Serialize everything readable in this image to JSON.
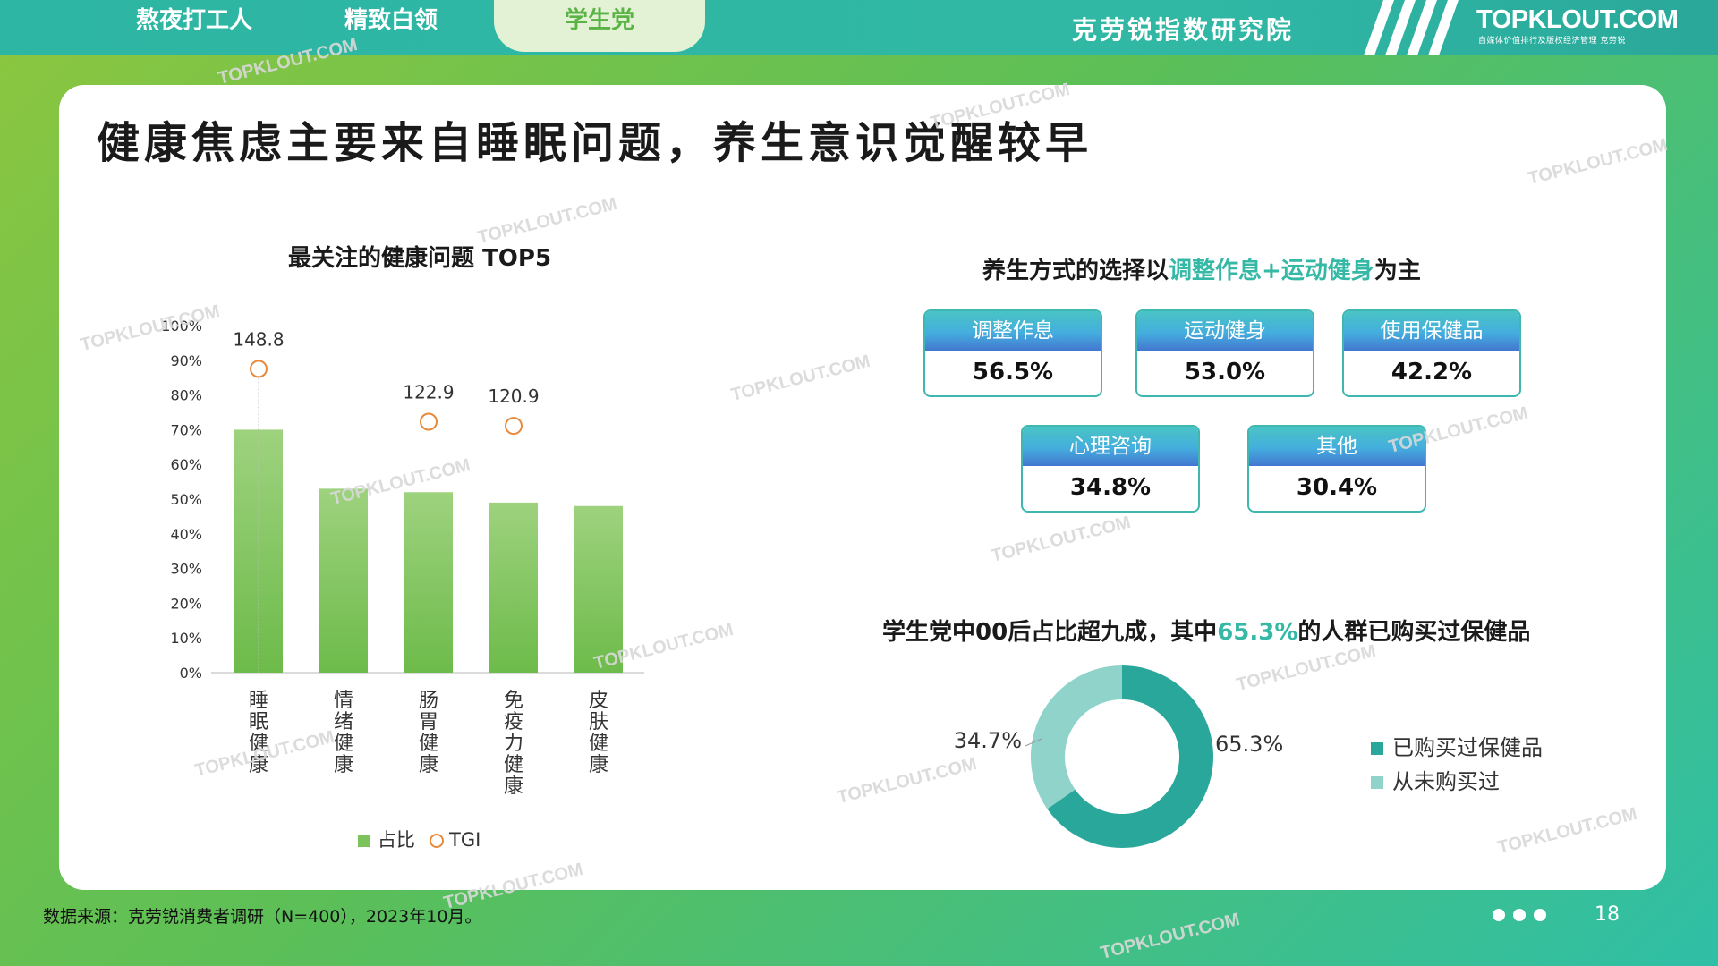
{
  "tabs": [
    {
      "label": "熬夜打工人"
    },
    {
      "label": "精致白领"
    },
    {
      "label": "学生党"
    }
  ],
  "institute": "克劳锐指数研究院",
  "logo": {
    "text": "TOPKLOUT.COM",
    "subtitle": "自媒体价值排行及版权经济管理 克劳锐"
  },
  "title": "健康焦虑主要来自睡眠问题，养生意识觉醒较早",
  "chart_data": [
    {
      "type": "bar",
      "title": "最关注的健康问题 TOP5",
      "categories": [
        "睡眠健康",
        "情绪健康",
        "肠胃健康",
        "免疫力健康",
        "皮肤健康"
      ],
      "series": [
        {
          "name": "占比",
          "values": [
            70,
            53,
            52,
            49,
            48
          ],
          "color": "#7cc35b"
        },
        {
          "name": "TGI",
          "values": [
            148.8,
            null,
            122.9,
            120.9,
            null
          ],
          "marker": "circle",
          "color": "#e8893a"
        }
      ],
      "tgi_labels": [
        "148.8",
        "",
        "122.9",
        "120.9",
        ""
      ],
      "y_ticks": [
        "0%",
        "10%",
        "20%",
        "30%",
        "40%",
        "50%",
        "60%",
        "70%",
        "80%",
        "90%",
        "100%"
      ],
      "ylim": [
        0,
        100
      ],
      "legend": "bottom"
    },
    {
      "type": "pie",
      "title": "学生党中00后占比超九成，其中65.3%的人群已购买过保健品",
      "categories": [
        "已购买过保健品",
        "从未购买过"
      ],
      "values": [
        65.3,
        34.7
      ],
      "labels": [
        "65.3%",
        "34.7%"
      ],
      "colors": [
        "#2aa79b",
        "#8fd3cb"
      ],
      "legend": "right"
    }
  ],
  "section2": {
    "title_pre": "养生方式的选择以",
    "title_hl": "调整作息+运动健身",
    "title_post": "为主",
    "stats": [
      {
        "label": "调整作息",
        "value": "56.5%"
      },
      {
        "label": "运动健身",
        "value": "53.0%"
      },
      {
        "label": "使用保健品",
        "value": "42.2%"
      },
      {
        "label": "心理咨询",
        "value": "34.8%"
      },
      {
        "label": "其他",
        "value": "30.4%"
      }
    ]
  },
  "section3": {
    "title_pre": "学生党中00后占比超九成，其中",
    "title_hl": "65.3%",
    "title_post": "的人群已购买过保健品"
  },
  "legend": {
    "bar": "占比",
    "tgi": "TGI"
  },
  "source": "数据来源：克劳锐消费者调研（N=400），2023年10月。",
  "page_number": "18",
  "watermark": "TOPKLOUT.COM",
  "colors": {
    "accent": "#35b8a6",
    "bar": "#7cc35b",
    "tgi": "#e8893a",
    "teal_dark": "#2aa79b",
    "teal_light": "#8fd3cb"
  }
}
